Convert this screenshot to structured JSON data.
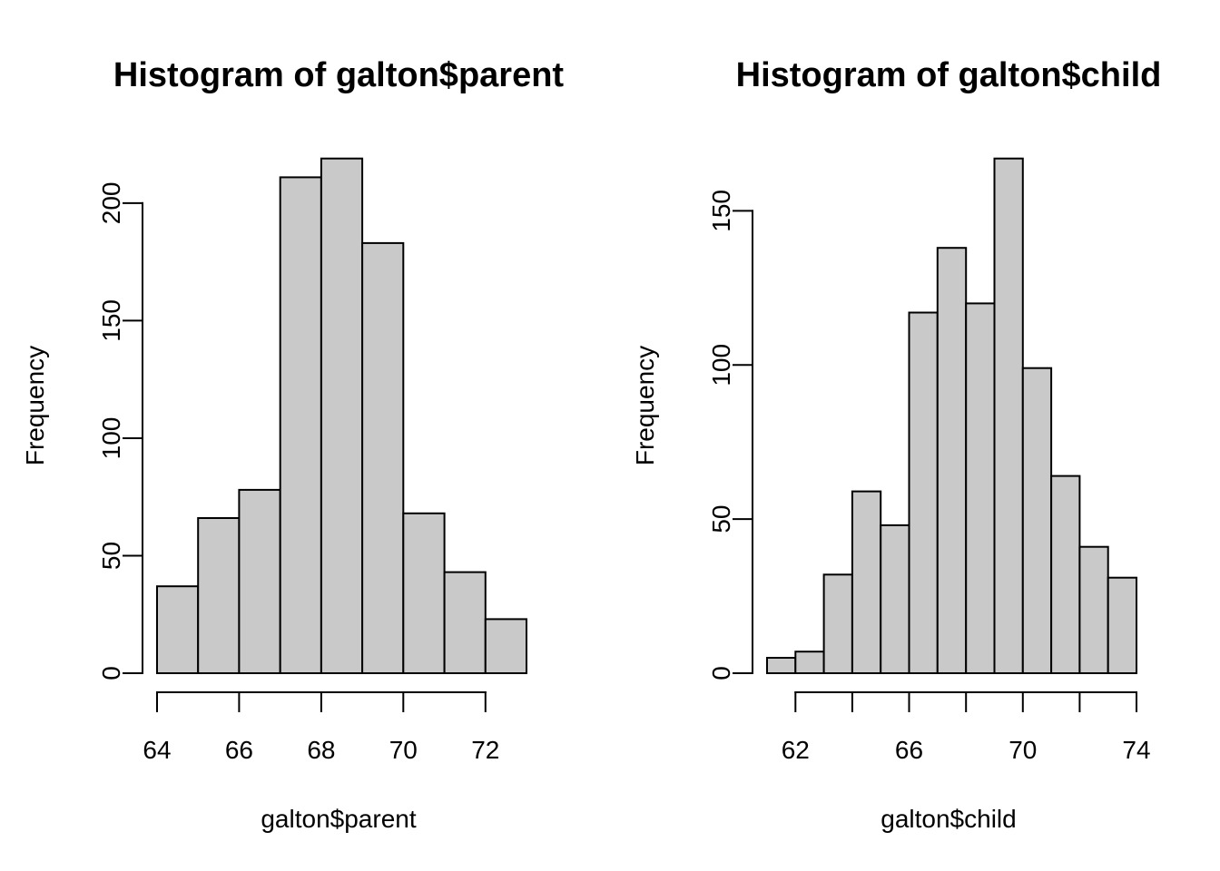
{
  "figure": {
    "background": "#FFFFFF",
    "text_color": "#000000"
  },
  "chart_data": [
    {
      "type": "bar",
      "subtype": "histogram",
      "title": "Histogram of galton$parent",
      "xlabel": "galton$parent",
      "ylabel": "Frequency",
      "bin_edges": [
        64,
        65,
        66,
        67,
        68,
        69,
        70,
        71,
        72,
        73
      ],
      "counts": [
        37,
        66,
        78,
        211,
        219,
        183,
        68,
        43,
        23
      ],
      "xlim": [
        64,
        73
      ],
      "ylim": [
        0,
        228
      ],
      "x_ticks": [
        64,
        66,
        68,
        70,
        72
      ],
      "x_labels": [
        {
          "value": 64,
          "text": "64"
        },
        {
          "value": 66,
          "text": "66"
        },
        {
          "value": 68,
          "text": "68"
        },
        {
          "value": 70,
          "text": "70"
        },
        {
          "value": 72,
          "text": "72"
        }
      ],
      "y_ticks": [
        0,
        50,
        100,
        150,
        200
      ],
      "grid": false,
      "legend": null,
      "bar_fill": "#C9C9C9",
      "bar_stroke": "#000000"
    },
    {
      "type": "bar",
      "subtype": "histogram",
      "title": "Histogram of galton$child",
      "xlabel": "galton$child",
      "ylabel": "Frequency",
      "bin_edges": [
        61,
        62,
        63,
        64,
        65,
        66,
        67,
        68,
        69,
        70,
        71,
        72,
        73,
        74
      ],
      "counts": [
        5,
        7,
        32,
        59,
        48,
        117,
        138,
        120,
        167,
        99,
        64,
        41,
        31
      ],
      "xlim": [
        61,
        74
      ],
      "ylim": [
        0,
        174
      ],
      "x_ticks": [
        62,
        64,
        66,
        68,
        70,
        72,
        74
      ],
      "x_labels": [
        {
          "value": 62,
          "text": "62"
        },
        {
          "value": 66,
          "text": "66"
        },
        {
          "value": 70,
          "text": "70"
        },
        {
          "value": 74,
          "text": "74"
        }
      ],
      "y_ticks": [
        0,
        50,
        100,
        150
      ],
      "grid": false,
      "legend": null,
      "bar_fill": "#C9C9C9",
      "bar_stroke": "#000000"
    }
  ]
}
